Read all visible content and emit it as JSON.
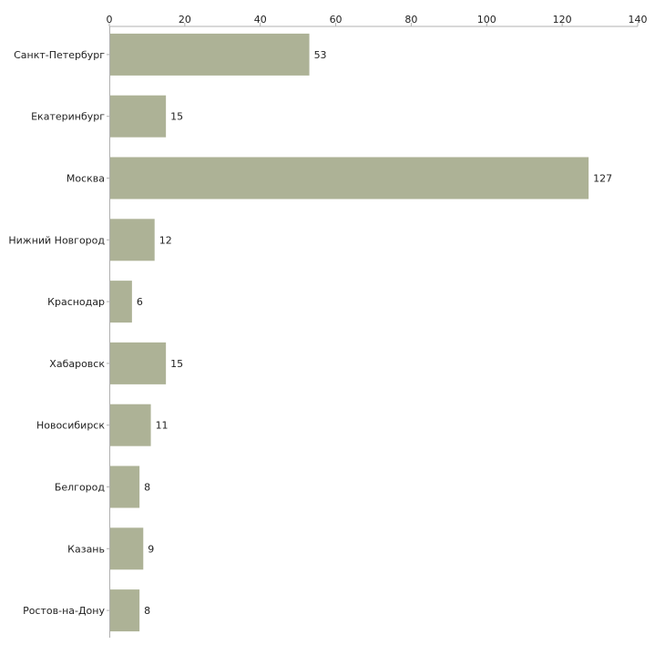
{
  "chart_data": {
    "type": "bar",
    "orientation": "horizontal",
    "title": "",
    "xlabel": "",
    "ylabel": "",
    "xlim": [
      0,
      140
    ],
    "ticks": [
      0,
      20,
      40,
      60,
      80,
      100,
      120,
      140
    ],
    "tick_labels": [
      "0",
      "20",
      "40",
      "60",
      "80",
      "100",
      "120",
      "140"
    ],
    "categories": [
      "Санкт-Петербург",
      "Екатеринбург",
      "Москва",
      "Нижний Новгород",
      "Краснодар",
      "Хабаровск",
      "Новосибирск",
      "Белгород",
      "Казань",
      "Ростов-на-Дону"
    ],
    "values": [
      53,
      15,
      127,
      12,
      6,
      15,
      11,
      8,
      9,
      8
    ],
    "value_labels": [
      "53",
      "15",
      "127",
      "12",
      "6",
      "15",
      "11",
      "8",
      "9",
      "8"
    ],
    "bar_color": "#adb296",
    "axis_color": "#b0b0b0",
    "grid": false,
    "legend": "none"
  }
}
